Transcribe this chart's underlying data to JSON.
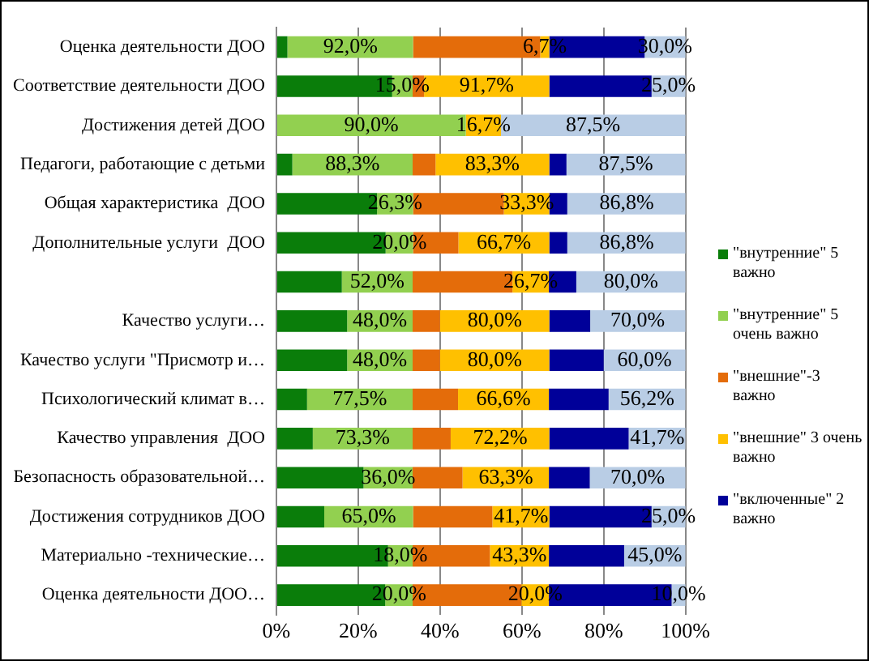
{
  "chart_data": {
    "type": "bar",
    "orientation": "horizontal",
    "stacked": true,
    "grid": "x",
    "legend": "right",
    "categories": [
      "Оценка деятельности ДОО",
      "Соответствие деятельности ДОО",
      "Достижения детей ДОО",
      "Педагоги, работающие с детьми",
      "Общая характеристика  ДОО",
      "Дополнительные услуги  ДОО",
      null,
      "Качество услуги…",
      "Качество услуги \"Присмотр и…",
      "Психологический климат в…",
      "Качество управления  ДОО",
      "Безопасность образовательной…",
      "Достижения сотрудников ДОО",
      "Материально -технические…",
      "Оценка деятельности ДОО…"
    ],
    "xlim": [
      0,
      100
    ],
    "xticks": [
      {
        "value": 0,
        "label": "0%"
      },
      {
        "value": 20,
        "label": "20%"
      },
      {
        "value": 40,
        "label": "40%"
      },
      {
        "value": 60,
        "label": "60%"
      },
      {
        "value": 80,
        "label": "80%"
      },
      {
        "value": 100,
        "label": "100%"
      }
    ],
    "series": [
      {
        "name": "\"внутренние\" 5 важно",
        "color": "#0a7d0a",
        "values": [
          2.7,
          28.3,
          0,
          3.9,
          24.6,
          26.7,
          16.0,
          17.3,
          17.3,
          7.5,
          8.9,
          21.3,
          11.7,
          27.3,
          26.6
        ]
      },
      {
        "name": "\"внутренние\" 5 очень важно",
        "color": "#92d050",
        "values": [
          30.7,
          5.0,
          46.3,
          29.4,
          8.8,
          6.7,
          17.3,
          16.0,
          16.0,
          25.8,
          24.4,
          12.0,
          21.7,
          6.0,
          6.7
        ]
      },
      {
        "name": "\"внешние\"-3 важно",
        "color": "#e46c0a",
        "values": [
          31.1,
          2.8,
          0,
          5.6,
          22.2,
          11.1,
          24.4,
          6.7,
          6.7,
          11.1,
          9.3,
          12.2,
          19.4,
          18.9,
          26.6
        ]
      },
      {
        "name": "\"внешние\" 3 очень важно",
        "color": "#ffc000",
        "values": [
          2.2,
          30.6,
          8.6,
          27.8,
          11.1,
          22.2,
          8.9,
          26.7,
          26.7,
          22.2,
          24.1,
          21.1,
          13.9,
          14.4,
          6.7
        ]
      },
      {
        "name": "\"включенные\" 2 важно",
        "color": "#000099",
        "values": [
          23.3,
          25.0,
          0,
          4.2,
          4.4,
          4.4,
          6.7,
          10.0,
          13.3,
          14.6,
          19.4,
          10.0,
          25.0,
          18.4,
          30.0
        ]
      },
      {
        "color": "#b9cde5",
        "values": [
          10.0,
          8.3,
          45.1,
          29.1,
          28.9,
          28.9,
          26.7,
          23.3,
          20.0,
          18.8,
          13.9,
          23.4,
          8.3,
          15.0,
          3.4
        ]
      }
    ],
    "annotations": [
      {
        "text": "92,0%",
        "x": 18.1,
        "y": "Оценка деятельности ДОО"
      },
      {
        "text": "6,7%",
        "x": 65.6,
        "y": "Оценка деятельности ДОО"
      },
      {
        "text": "30,0%",
        "x": 95.0,
        "y": "Оценка деятельности ДОО"
      },
      {
        "text": "15,0%",
        "x": 30.8,
        "y": "Соответствие деятельности ДОО"
      },
      {
        "text": "91,7%",
        "x": 51.4,
        "y": "Соответствие деятельности ДОО"
      },
      {
        "text": "25,0%",
        "x": 95.8,
        "y": "Соответствие деятельности ДОО"
      },
      {
        "text": "90,0%",
        "x": 23.2,
        "y": "Достижения детей ДОО"
      },
      {
        "text": "16,7%",
        "x": 50.6,
        "y": "Достижения детей ДОО"
      },
      {
        "text": "87,5%",
        "x": 77.4,
        "y": "Достижения детей ДОО"
      },
      {
        "text": "88,3%",
        "x": 18.6,
        "y": "Педагоги, работающие с детьми"
      },
      {
        "text": "83,3%",
        "x": 52.8,
        "y": "Педагоги, работающие с детьми"
      },
      {
        "text": "87,5%",
        "x": 85.4,
        "y": "Педагоги, работающие с детьми"
      },
      {
        "text": "26,3%",
        "x": 29.0,
        "y": "Общая характеристика  ДОО"
      },
      {
        "text": "33,3%",
        "x": 61.2,
        "y": "Общая характеристика  ДОО"
      },
      {
        "text": "86,8%",
        "x": 85.6,
        "y": "Общая характеристика  ДОО"
      },
      {
        "text": "20,0%",
        "x": 30.1,
        "y": "Дополнительные услуги  ДОО"
      },
      {
        "text": "66,7%",
        "x": 55.6,
        "y": "Дополнительные услуги  ДОО"
      },
      {
        "text": "86,8%",
        "x": 85.6,
        "y": "Дополнительные услуги  ДОО"
      },
      "52,0%",
      "26,7%",
      "80,0%",
      {
        "text": "48,0%",
        "x": 25.3,
        "y": "Качество услуги…"
      },
      {
        "text": "80,0%",
        "x": 53.4,
        "y": "Качество услуги…"
      },
      {
        "text": "70,0%",
        "x": 88.3,
        "y": "Качество услуги…"
      },
      {
        "text": "48,0%",
        "x": 25.3,
        "y": "Качество услуги \"Присмотр и…"
      },
      {
        "text": "80,0%",
        "x": 53.4,
        "y": "Качество услуги \"Присмотр и…"
      },
      {
        "text": "60,0%",
        "x": 90.0,
        "y": "Качество услуги \"Присмотр и…"
      },
      {
        "text": "77,5%",
        "x": 20.4,
        "y": "Психологический климат в…"
      },
      {
        "text": "66,6%",
        "x": 55.5,
        "y": "Психологический климат в…"
      },
      {
        "text": "56,2%",
        "x": 90.6,
        "y": "Психологический климат в…"
      },
      {
        "text": "73,3%",
        "x": 21.1,
        "y": "Качество управления  ДОО"
      },
      {
        "text": "72,2%",
        "x": 54.7,
        "y": "Качество управления  ДОО"
      },
      {
        "text": "41,7%",
        "x": 93.1,
        "y": "Качество управления  ДОО"
      },
      {
        "text": "36,0%",
        "x": 27.3,
        "y": "Безопасность образовательной…"
      },
      {
        "text": "63,3%",
        "x": 56.1,
        "y": "Безопасность образовательной…"
      },
      {
        "text": "70,0%",
        "x": 88.3,
        "y": "Безопасность образовательной…"
      },
      {
        "text": "65,0%",
        "x": 22.6,
        "y": "Достижения сотрудников ДОО"
      },
      {
        "text": "41,7%",
        "x": 59.8,
        "y": "Достижения сотрудников ДОО"
      },
      {
        "text": "25,0%",
        "x": 95.8,
        "y": "Достижения сотрудников ДОО"
      },
      {
        "text": "18,0%",
        "x": 30.3,
        "y": "Материально -технические…"
      },
      {
        "text": "43,3%",
        "x": 59.4,
        "y": "Материально -технические…"
      },
      {
        "text": "45,0%",
        "x": 92.5,
        "y": "Материально -технические…"
      },
      {
        "text": "20,0%",
        "x": 30.0,
        "y": "Оценка деятельности ДОО…"
      },
      {
        "text": "20,0%",
        "x": 63.3,
        "y": "Оценка деятельности ДОО…"
      },
      {
        "text": "10,0%",
        "x": 98.3,
        "y": "Оценка деятельности ДОО…"
      }
    ]
  }
}
